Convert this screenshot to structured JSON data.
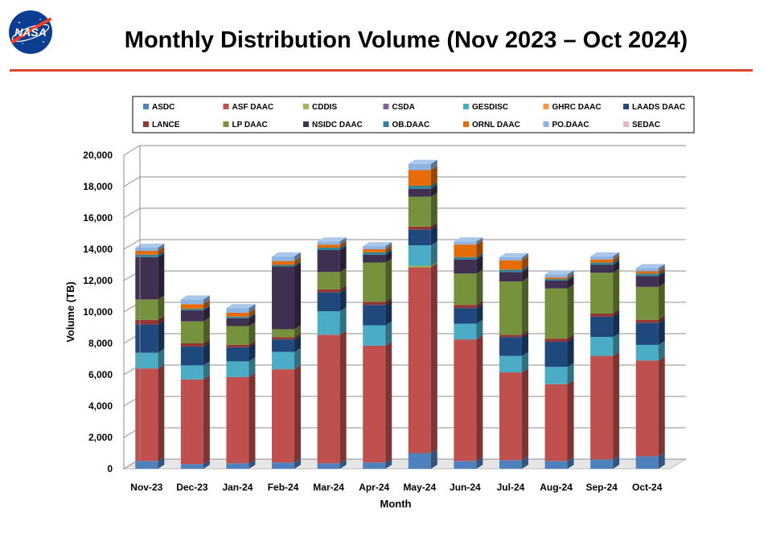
{
  "header": {
    "title": "Monthly Distribution Volume (Nov 2023 – Oct 2024)",
    "logo_text": "NASA"
  },
  "colors": {
    "accent_rule": "#e0452e"
  },
  "chart_data": {
    "type": "bar",
    "stacked": true,
    "grid": true,
    "legend_position": "top",
    "title": "",
    "xlabel": "Month",
    "ylabel": "Volume (TB)",
    "ylim": [
      0,
      20000
    ],
    "yticks": [
      0,
      2000,
      4000,
      6000,
      8000,
      10000,
      12000,
      14000,
      16000,
      18000,
      20000
    ],
    "ytick_labels": [
      "0",
      "2,000",
      "4,000",
      "6,000",
      "8,000",
      "10,000",
      "12,000",
      "14,000",
      "16,000",
      "18,000",
      "20,000"
    ],
    "categories": [
      "Nov-23",
      "Dec-23",
      "Jan-24",
      "Feb-24",
      "Mar-24",
      "Apr-24",
      "May-24",
      "Jun-24",
      "Jul-24",
      "Aug-24",
      "Sep-24",
      "Oct-24"
    ],
    "series": [
      {
        "name": "ASDC",
        "color": "#4f81bd",
        "values": [
          500,
          300,
          350,
          400,
          350,
          400,
          1000,
          500,
          550,
          500,
          600,
          800
        ]
      },
      {
        "name": "ASF DAAC",
        "color": "#c0504d",
        "values": [
          5900,
          5400,
          5500,
          5950,
          8200,
          7450,
          11850,
          7750,
          5600,
          4900,
          6600,
          6100
        ]
      },
      {
        "name": "CDDIS",
        "color": "#9bbb59",
        "values": [
          0,
          0,
          0,
          0,
          0,
          0,
          100,
          0,
          0,
          0,
          0,
          0
        ]
      },
      {
        "name": "CSDA",
        "color": "#8064a2",
        "values": [
          0,
          0,
          0,
          0,
          0,
          0,
          0,
          0,
          0,
          0,
          0,
          0
        ]
      },
      {
        "name": "GESDISC",
        "color": "#4bacc6",
        "values": [
          1000,
          900,
          1000,
          1100,
          1500,
          1300,
          1300,
          1000,
          1050,
          1100,
          1200,
          1000
        ]
      },
      {
        "name": "GHRC DAAC",
        "color": "#f79646",
        "values": [
          0,
          0,
          0,
          0,
          0,
          0,
          0,
          0,
          0,
          0,
          0,
          0
        ]
      },
      {
        "name": "LAADS DAAC",
        "color": "#1f497d",
        "values": [
          1800,
          1200,
          900,
          800,
          1200,
          1300,
          1000,
          1000,
          1200,
          1600,
          1300,
          1400
        ]
      },
      {
        "name": "LANCE",
        "color": "#943634",
        "values": [
          300,
          200,
          150,
          150,
          200,
          200,
          200,
          200,
          150,
          200,
          200,
          200
        ]
      },
      {
        "name": "LP DAAC",
        "color": "#76923c",
        "values": [
          1300,
          1400,
          1200,
          500,
          1100,
          2500,
          1900,
          2000,
          3400,
          3200,
          2600,
          2100
        ]
      },
      {
        "name": "NSIDC DAAC",
        "color": "#403152",
        "values": [
          2700,
          700,
          500,
          4000,
          1400,
          500,
          500,
          900,
          600,
          500,
          500,
          700
        ]
      },
      {
        "name": "OB.DAAC",
        "color": "#31849b",
        "values": [
          150,
          100,
          100,
          100,
          150,
          150,
          200,
          150,
          150,
          100,
          150,
          150
        ]
      },
      {
        "name": "ORNL DAAC",
        "color": "#e36c09",
        "values": [
          250,
          300,
          250,
          250,
          200,
          200,
          1000,
          800,
          600,
          100,
          200,
          150
        ]
      },
      {
        "name": "PO.DAAC",
        "color": "#8db3e2",
        "values": [
          200,
          300,
          300,
          300,
          200,
          200,
          400,
          200,
          200,
          200,
          200,
          200
        ]
      },
      {
        "name": "SEDAC",
        "color": "#e6b9b8",
        "values": [
          0,
          0,
          0,
          0,
          0,
          0,
          0,
          0,
          0,
          0,
          0,
          0
        ]
      }
    ]
  }
}
